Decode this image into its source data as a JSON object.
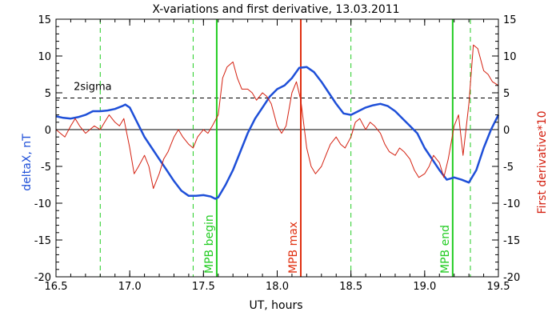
{
  "chart_data": {
    "type": "line",
    "title": "X-variations and first derivative, 13.03.2011",
    "xlabel": "UT, hours",
    "ylabel_left": "deltaX, nT",
    "ylabel_right": "First derivative*10",
    "xlim": [
      16.5,
      19.5
    ],
    "ylim_left": [
      -20,
      15
    ],
    "ylim_right": [
      -20,
      15
    ],
    "xticks": [
      "16.5",
      "17.0",
      "17.5",
      "18.0",
      "18.5",
      "19.0",
      "19.5"
    ],
    "yticks_left": [
      "15",
      "10",
      "5",
      "0",
      "-5",
      "-10",
      "-15",
      "-20"
    ],
    "yticks_right": [
      "15",
      "10",
      "5",
      "0",
      "-5",
      "-10",
      "-15",
      "-20"
    ],
    "sigma_label": "2sigma",
    "sigma_level": 4.3,
    "zero_level": 0,
    "colors": {
      "deltaX": "#1e4fd8",
      "derivative": "#d42010",
      "mpb_lines": "#22cc22",
      "max_line": "#e03010",
      "axes": "#000000"
    },
    "vertical_markers": [
      {
        "x": 16.8,
        "style": "dashed",
        "color": "#22cc22",
        "label": ""
      },
      {
        "x": 17.43,
        "style": "dashed",
        "color": "#22cc22",
        "label": ""
      },
      {
        "x": 17.59,
        "style": "solid",
        "color": "#22cc22",
        "label": "MPB begin"
      },
      {
        "x": 18.16,
        "style": "solid",
        "color": "#e03010",
        "label": "MPB max"
      },
      {
        "x": 18.5,
        "style": "dashed",
        "color": "#22cc22",
        "label": ""
      },
      {
        "x": 19.19,
        "style": "solid",
        "color": "#22cc22",
        "label": "MPB end"
      },
      {
        "x": 19.31,
        "style": "dashed",
        "color": "#22cc22",
        "label": ""
      }
    ],
    "series": [
      {
        "name": "deltaX, nT",
        "axis": "left",
        "x": [
          16.5,
          16.55,
          16.6,
          16.65,
          16.7,
          16.75,
          16.8,
          16.85,
          16.9,
          16.95,
          16.97,
          17.0,
          17.05,
          17.1,
          17.15,
          17.2,
          17.25,
          17.3,
          17.35,
          17.4,
          17.45,
          17.5,
          17.55,
          17.58,
          17.6,
          17.65,
          17.7,
          17.75,
          17.8,
          17.85,
          17.9,
          17.95,
          18.0,
          18.05,
          18.1,
          18.15,
          18.2,
          18.25,
          18.3,
          18.35,
          18.4,
          18.45,
          18.5,
          18.55,
          18.6,
          18.65,
          18.7,
          18.75,
          18.8,
          18.85,
          18.9,
          18.95,
          19.0,
          19.05,
          19.1,
          19.15,
          19.2,
          19.25,
          19.3,
          19.35,
          19.4,
          19.45,
          19.5
        ],
        "y": [
          1.8,
          1.6,
          1.5,
          1.7,
          2.0,
          2.5,
          2.5,
          2.6,
          2.8,
          3.2,
          3.4,
          3.0,
          1.0,
          -1.0,
          -2.5,
          -4.0,
          -5.5,
          -7.0,
          -8.3,
          -9.0,
          -9.0,
          -8.9,
          -9.1,
          -9.4,
          -9.2,
          -7.5,
          -5.5,
          -3.0,
          -0.5,
          1.5,
          3.0,
          4.5,
          5.5,
          6.0,
          7.0,
          8.4,
          8.5,
          7.8,
          6.5,
          5.0,
          3.5,
          2.2,
          2.0,
          2.5,
          3.0,
          3.3,
          3.5,
          3.2,
          2.5,
          1.5,
          0.5,
          -0.5,
          -2.5,
          -4.0,
          -5.5,
          -6.8,
          -6.5,
          -6.8,
          -7.2,
          -5.5,
          -2.5,
          0.0,
          2.0
        ]
      },
      {
        "name": "First derivative*10",
        "axis": "right",
        "x": [
          16.5,
          16.53,
          16.56,
          16.6,
          16.63,
          16.66,
          16.7,
          16.73,
          16.76,
          16.8,
          16.83,
          16.86,
          16.9,
          16.93,
          16.96,
          17.0,
          17.03,
          17.06,
          17.1,
          17.13,
          17.16,
          17.2,
          17.23,
          17.26,
          17.3,
          17.33,
          17.36,
          17.4,
          17.43,
          17.46,
          17.5,
          17.53,
          17.56,
          17.6,
          17.63,
          17.66,
          17.7,
          17.73,
          17.76,
          17.8,
          17.83,
          17.86,
          17.9,
          17.93,
          17.96,
          18.0,
          18.03,
          18.06,
          18.1,
          18.13,
          18.16,
          18.2,
          18.23,
          18.26,
          18.3,
          18.33,
          18.36,
          18.4,
          18.43,
          18.46,
          18.5,
          18.53,
          18.56,
          18.6,
          18.63,
          18.66,
          18.7,
          18.73,
          18.76,
          18.8,
          18.83,
          18.86,
          18.9,
          18.93,
          18.96,
          19.0,
          19.03,
          19.06,
          19.1,
          19.13,
          19.16,
          19.2,
          19.23,
          19.26,
          19.3,
          19.33,
          19.36,
          19.4,
          19.43,
          19.46,
          19.5
        ],
        "y": [
          0.0,
          -0.5,
          -1.0,
          0.5,
          1.5,
          0.5,
          -0.5,
          0.0,
          0.5,
          0.0,
          1.0,
          2.0,
          1.0,
          0.5,
          1.5,
          -2.5,
          -6.0,
          -5.0,
          -3.5,
          -5.0,
          -8.0,
          -6.0,
          -4.0,
          -3.0,
          -1.0,
          0.0,
          -1.0,
          -2.0,
          -2.5,
          -1.0,
          0.0,
          -0.5,
          0.5,
          2.0,
          7.0,
          8.5,
          9.2,
          7.0,
          5.5,
          5.5,
          5.0,
          4.0,
          5.0,
          4.5,
          3.5,
          0.5,
          -0.5,
          0.5,
          5.0,
          6.5,
          4.0,
          -2.5,
          -5.0,
          -6.0,
          -5.0,
          -3.5,
          -2.0,
          -1.0,
          -2.0,
          -2.5,
          -1.0,
          1.0,
          1.5,
          0.0,
          1.0,
          0.5,
          -0.5,
          -2.0,
          -3.0,
          -3.5,
          -2.5,
          -3.0,
          -4.0,
          -5.5,
          -6.5,
          -6.0,
          -5.0,
          -3.5,
          -4.5,
          -6.5,
          -4.0,
          0.5,
          2.0,
          -3.5,
          3.5,
          11.5,
          11.0,
          8.0,
          7.5,
          6.5,
          6.0
        ]
      }
    ]
  }
}
